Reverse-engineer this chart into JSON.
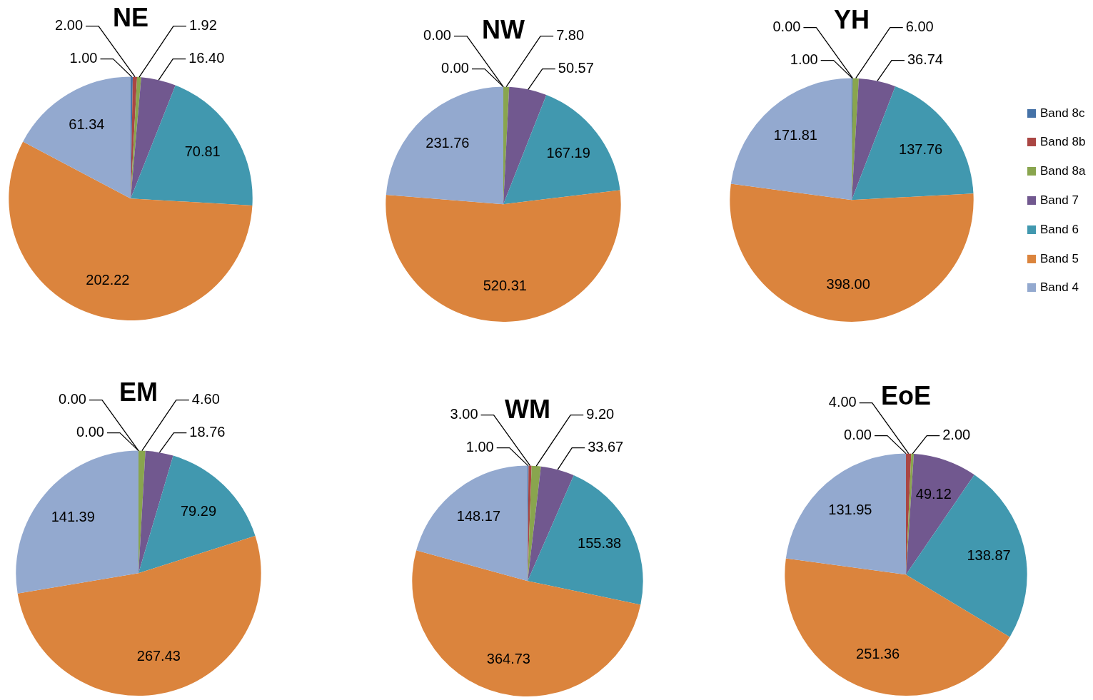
{
  "chart_data": [
    {
      "type": "pie",
      "title": "NE",
      "categories": [
        null,
        null,
        null,
        null,
        null,
        null,
        null
      ],
      "values": [
        1.0,
        2.0,
        1.92,
        16.4,
        70.81,
        202.22,
        61.34
      ],
      "value_labels": [
        "1.00",
        "2.00",
        "1.92",
        "16.40",
        "70.81",
        "202.22",
        "61.34"
      ],
      "colors": [
        "#4572a7",
        "#aa4643",
        "#89a54e",
        "#71588f",
        "#4198af",
        "#db843d",
        "#93a9cf"
      ]
    },
    {
      "type": "pie",
      "title": "NW",
      "categories": [
        null,
        null,
        null,
        null,
        null,
        null,
        null
      ],
      "values": [
        0.0,
        0.0,
        7.8,
        50.57,
        167.19,
        520.31,
        231.76
      ],
      "value_labels": [
        "0.00",
        "0.00",
        "7.80",
        "50.57",
        "167.19",
        "520.31",
        "231.76"
      ],
      "colors": [
        "#4572a7",
        "#aa4643",
        "#89a54e",
        "#71588f",
        "#4198af",
        "#db843d",
        "#93a9cf"
      ]
    },
    {
      "type": "pie",
      "title": "YH",
      "categories": [
        "Band 8c",
        "Band 8b",
        "Band 8a",
        "Band 7",
        "Band 6",
        "Band 5",
        "Band 4"
      ],
      "values": [
        1.0,
        0.0,
        6.0,
        36.74,
        137.76,
        398.0,
        171.81
      ],
      "value_labels": [
        "1.00",
        "0.00",
        "6.00",
        "36.74",
        "137.76",
        "398.00",
        "171.81"
      ],
      "colors": [
        "#4572a7",
        "#aa4643",
        "#89a54e",
        "#71588f",
        "#4198af",
        "#db843d",
        "#93a9cf"
      ],
      "legend": "right"
    },
    {
      "type": "pie",
      "title": "EM",
      "categories": [
        null,
        null,
        null,
        null,
        null,
        null,
        null
      ],
      "values": [
        0.0,
        0.0,
        4.6,
        18.76,
        79.29,
        267.43,
        141.39
      ],
      "value_labels": [
        "0.00",
        "0.00",
        "4.60",
        "18.76",
        "79.29",
        "267.43",
        "141.39"
      ],
      "colors": [
        "#4572a7",
        "#aa4643",
        "#89a54e",
        "#71588f",
        "#4198af",
        "#db843d",
        "#93a9cf"
      ]
    },
    {
      "type": "pie",
      "title": "WM",
      "categories": [
        null,
        null,
        null,
        null,
        null,
        null,
        null
      ],
      "values": [
        1.0,
        3.0,
        9.2,
        33.67,
        155.38,
        364.73,
        148.17
      ],
      "value_labels": [
        "1.00",
        "3.00",
        "9.20",
        "33.67",
        "155.38",
        "364.73",
        "148.17"
      ],
      "colors": [
        "#4572a7",
        "#aa4643",
        "#89a54e",
        "#71588f",
        "#4198af",
        "#db843d",
        "#93a9cf"
      ]
    },
    {
      "type": "pie",
      "title": "EoE",
      "categories": [
        null,
        null,
        null,
        null,
        null,
        null,
        null
      ],
      "values": [
        0.0,
        4.0,
        2.0,
        49.12,
        138.87,
        251.36,
        131.95
      ],
      "value_labels": [
        "0.00",
        "4.00",
        "2.00",
        "49.12",
        "138.87",
        "251.36",
        "131.95"
      ],
      "colors": [
        "#4572a7",
        "#aa4643",
        "#89a54e",
        "#71588f",
        "#4198af",
        "#db843d",
        "#93a9cf"
      ]
    }
  ]
}
